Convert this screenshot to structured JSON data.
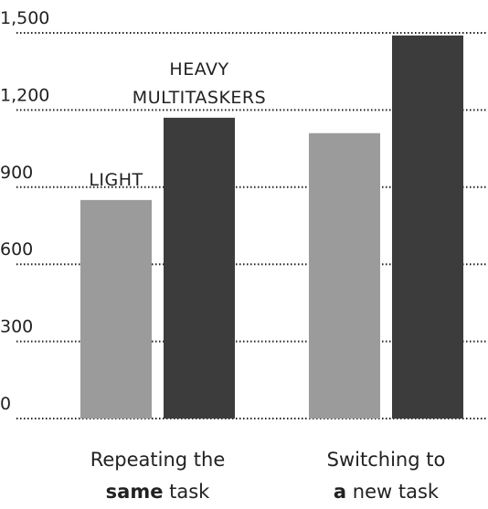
{
  "chart_data": {
    "type": "bar",
    "categories": [
      "Repeating the same task",
      "Switching to a new task"
    ],
    "series": [
      {
        "name": "LIGHT",
        "color": "#9b9b9b",
        "values": [
          850,
          1110
        ]
      },
      {
        "name": "HEAVY MULTITASKERS",
        "color": "#3c3c3c",
        "values": [
          1170,
          1490
        ]
      }
    ],
    "ylim": [
      0,
      1500
    ],
    "yticks": [
      0,
      300,
      600,
      900,
      {
        "value": 1200,
        "label": "1,200"
      },
      {
        "value": 1500,
        "label": "1,500"
      }
    ],
    "grid": true
  }
}
